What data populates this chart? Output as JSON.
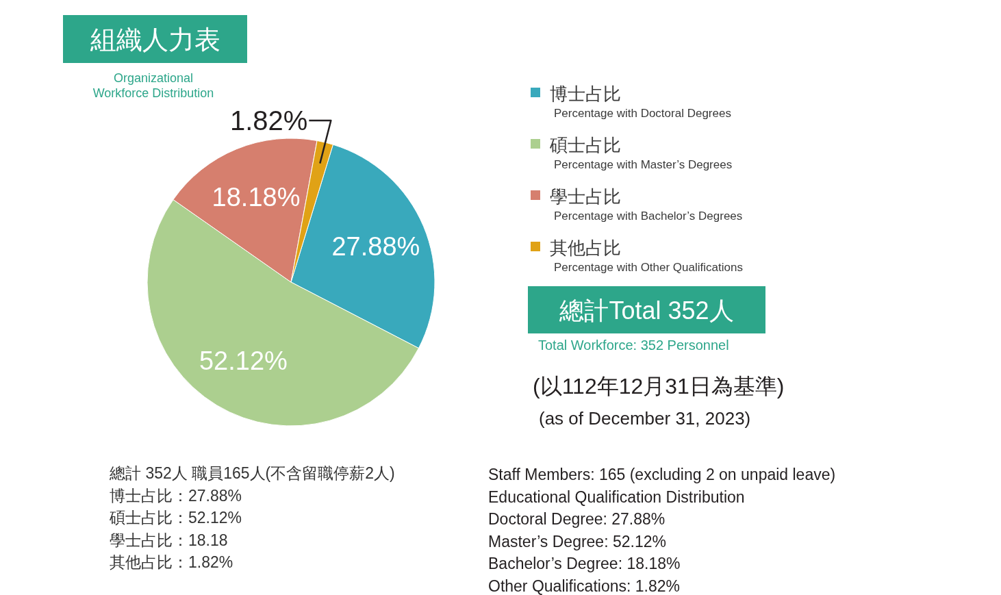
{
  "chart_data": {
    "type": "pie",
    "title": "組織人力表",
    "subtitle": "Organizational Workforce Distribution",
    "categories": [
      "博士占比\nPercentage with Doctoral Degrees",
      "碩士占比\nPercentage with Master’s Degrees",
      "學士占比\nPercentage with Bachelor’s Degrees",
      "其他占比\nPercentage with Other Qualifications"
    ],
    "values": [
      27.88,
      52.12,
      18.18,
      1.82
    ],
    "colors": [
      "#39a9bc",
      "#accf8f",
      "#d67f6e",
      "#e0a216"
    ],
    "value_labels": [
      "27.88%",
      "52.12%",
      "18.18%",
      "1.82%"
    ],
    "legend": "right",
    "annotations": [
      "總計Total 352人",
      "Total Workforce: 352 Personnel",
      "(以112年12月31日為基準)",
      "(as of December 31, 2023)",
      "總計 352人 職員165人(不含留職停薪2人)\n博士占比：27.88%\n碩士占比：52.12%\n學士占比：18.18\n其他占比：1.82%",
      "Staff Members: 165 (excluding 2 on unpaid leave)\nEducational Qualification Distribution\nDoctoral Degree: 27.88%\nMaster’s Degree: 52.12%\nBachelor’s Degree: 18.18%\nOther Qualifications: 1.82%"
    ]
  }
}
